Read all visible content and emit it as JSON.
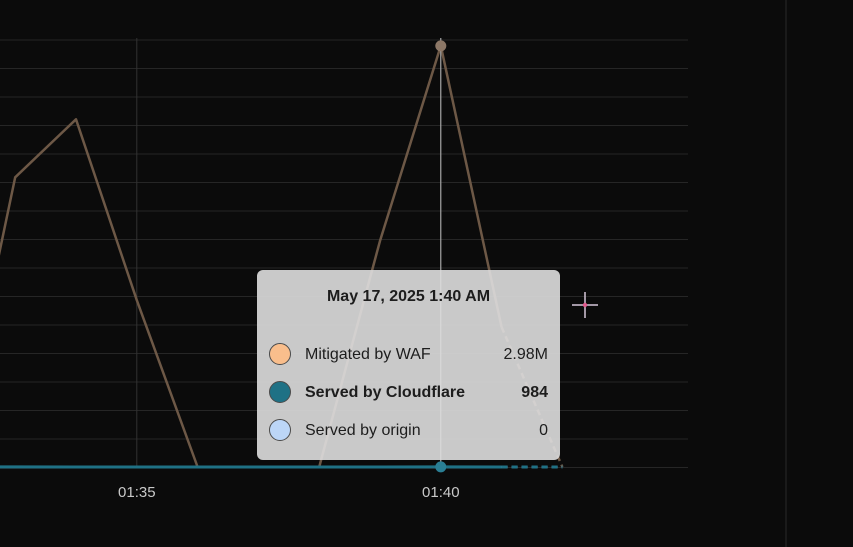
{
  "chart_data": {
    "type": "line",
    "x": [
      "01:32",
      "01:33",
      "01:34",
      "01:35",
      "01:36",
      "01:37",
      "01:38",
      "01:39",
      "01:40",
      "01:41",
      "01:42"
    ],
    "x_ticks": [
      "01:35",
      "01:40"
    ],
    "ylim": [
      0,
      3000000
    ],
    "grid": true,
    "series": [
      {
        "name": "Mitigated by WAF",
        "color": "#f9be8c",
        "values": [
          0,
          2050000,
          2460000,
          1180000,
          0,
          null,
          0,
          1600000,
          2980000,
          990000,
          0
        ]
      },
      {
        "name": "Served by Cloudflare",
        "color": "#1f7185",
        "values": [
          0,
          500,
          0,
          0,
          0,
          0,
          0,
          0,
          984,
          0,
          0
        ]
      },
      {
        "name": "Served by origin",
        "color": "#bcd6f7",
        "values": [
          0,
          0,
          0,
          0,
          0,
          0,
          0,
          0,
          0,
          0,
          0
        ]
      }
    ],
    "hover_x": "01:40"
  },
  "tooltip": {
    "title": "May 17, 2025 1:40 AM",
    "rows": [
      {
        "label": "Mitigated by WAF",
        "value": "2.98M",
        "swatch": "#f9be8c"
      },
      {
        "label": "Served by Cloudflare",
        "value": "984",
        "swatch": "#1f7185"
      },
      {
        "label": "Served by origin",
        "value": "0",
        "swatch": "#bcd6f7"
      }
    ]
  }
}
